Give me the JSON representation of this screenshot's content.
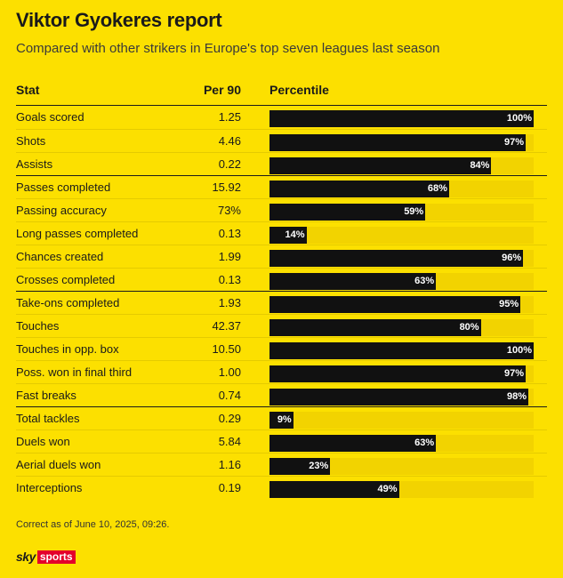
{
  "title": "Viktor Gyokeres report",
  "subtitle": "Compared with other strikers in Europe's top seven leagues last season",
  "columns": {
    "stat": "Stat",
    "per90": "Per 90",
    "percentile": "Percentile"
  },
  "chart_data": {
    "type": "bar",
    "orientation": "horizontal",
    "title": "Viktor Gyokeres report",
    "subtitle": "Compared with other strikers in Europe's top seven leagues last season",
    "xlim": [
      0,
      100
    ],
    "grid": false,
    "rows": [
      {
        "stat": "Goals scored",
        "per90": "1.25",
        "percentile": 100,
        "label": "100%",
        "group_start": false
      },
      {
        "stat": "Shots",
        "per90": "4.46",
        "percentile": 97,
        "label": "97%",
        "group_start": false
      },
      {
        "stat": "Assists",
        "per90": "0.22",
        "percentile": 84,
        "label": "84%",
        "group_start": false
      },
      {
        "stat": "Passes completed",
        "per90": "15.92",
        "percentile": 68,
        "label": "68%",
        "group_start": true
      },
      {
        "stat": "Passing accuracy",
        "per90": "73%",
        "percentile": 59,
        "label": "59%",
        "group_start": false
      },
      {
        "stat": "Long passes completed",
        "per90": "0.13",
        "percentile": 14,
        "label": "14%",
        "group_start": false
      },
      {
        "stat": "Chances created",
        "per90": "1.99",
        "percentile": 96,
        "label": "96%",
        "group_start": false
      },
      {
        "stat": "Crosses completed",
        "per90": "0.13",
        "percentile": 63,
        "label": "63%",
        "group_start": false
      },
      {
        "stat": "Take-ons completed",
        "per90": "1.93",
        "percentile": 95,
        "label": "95%",
        "group_start": true
      },
      {
        "stat": "Touches",
        "per90": "42.37",
        "percentile": 80,
        "label": "80%",
        "group_start": false
      },
      {
        "stat": "Touches in opp. box",
        "per90": "10.50",
        "percentile": 100,
        "label": "100%",
        "group_start": false
      },
      {
        "stat": "Poss. won in final third",
        "per90": "1.00",
        "percentile": 97,
        "label": "97%",
        "group_start": false
      },
      {
        "stat": "Fast breaks",
        "per90": "0.74",
        "percentile": 98,
        "label": "98%",
        "group_start": false
      },
      {
        "stat": "Total tackles",
        "per90": "0.29",
        "percentile": 9,
        "label": "9%",
        "group_start": true
      },
      {
        "stat": "Duels won",
        "per90": "5.84",
        "percentile": 63,
        "label": "63%",
        "group_start": false
      },
      {
        "stat": "Aerial duels won",
        "per90": "1.16",
        "percentile": 23,
        "label": "23%",
        "group_start": false
      },
      {
        "stat": "Interceptions",
        "per90": "0.19",
        "percentile": 49,
        "label": "49%",
        "group_start": false
      }
    ]
  },
  "footnote": "Correct as of June 10, 2025, 09:26.",
  "logo": {
    "sky": "sky",
    "sports": "sports"
  },
  "colors": {
    "background": "#fce000",
    "bar": "#111111",
    "track": "#f2d300",
    "brand_red": "#e4002b"
  }
}
